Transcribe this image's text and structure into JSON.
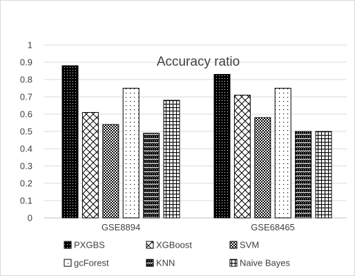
{
  "chart_data": {
    "type": "bar",
    "title": "Accuracy ratio",
    "xlabel": "",
    "ylabel": "",
    "ylim": [
      0,
      1
    ],
    "yticks": [
      "0",
      "0.1",
      "0.2",
      "0.3",
      "0.4",
      "0.5",
      "0.6",
      "0.7",
      "0.8",
      "0.9",
      "1"
    ],
    "grid": true,
    "legend_position": "bottom",
    "categories": [
      "GSE8894",
      "GSE68465"
    ],
    "series": [
      {
        "name": "PXGBS",
        "values": [
          0.88,
          0.83
        ],
        "pattern": "dots-dense"
      },
      {
        "name": "XGBoost",
        "values": [
          0.61,
          0.71
        ],
        "pattern": "crosshatch"
      },
      {
        "name": "SVM",
        "values": [
          0.54,
          0.58
        ],
        "pattern": "checker"
      },
      {
        "name": "gcForest",
        "values": [
          0.75,
          0.75
        ],
        "pattern": "dots-sparse"
      },
      {
        "name": "KNN",
        "values": [
          0.49,
          0.5
        ],
        "pattern": "zigzag"
      },
      {
        "name": "Naive Bayes",
        "values": [
          0.68,
          0.5
        ],
        "pattern": "grid"
      }
    ],
    "colors": {
      "ink": "#000000",
      "gridline": "#d9d9d9",
      "text": "#404040"
    }
  }
}
